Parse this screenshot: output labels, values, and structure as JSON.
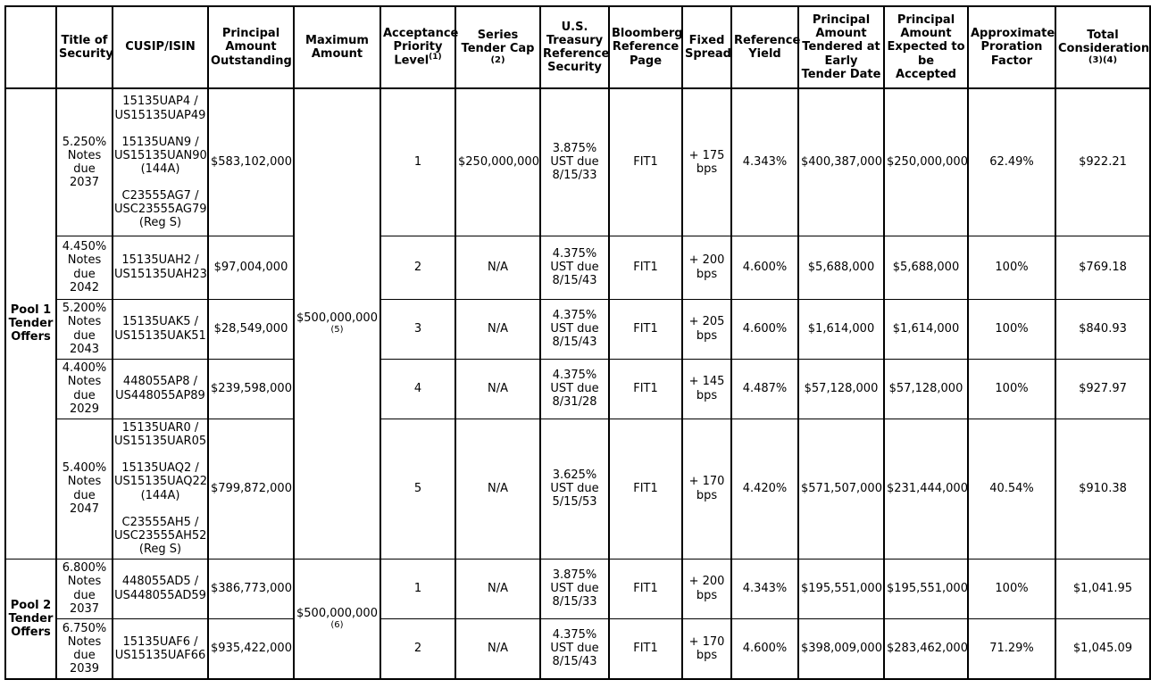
{
  "table": {
    "headers": [
      {
        "text": ""
      },
      {
        "text": "Title of Security"
      },
      {
        "text": "CUSIP/ISIN"
      },
      {
        "text": "Principal Amount Outstanding"
      },
      {
        "text": "Maximum Amount"
      },
      {
        "text": "Acceptance Priority Level",
        "sup": "(1)"
      },
      {
        "text": "Series Tender Cap",
        "note": "(2)"
      },
      {
        "text": "U.S. Treasury Reference Security"
      },
      {
        "text": "Bloomberg Reference Page"
      },
      {
        "text": "Fixed Spread"
      },
      {
        "text": "Reference Yield"
      },
      {
        "text": "Principal Amount Tendered at Early Tender Date"
      },
      {
        "text": "Principal Amount Expected to be Accepted"
      },
      {
        "text": "Approximate Proration Factor"
      },
      {
        "text": "Total Consideration",
        "note": "(3)(4)"
      }
    ],
    "pools": [
      {
        "label": "Pool 1 Tender Offers",
        "maximum_amount": "$500,000,000",
        "maximum_amount_note": "(5)",
        "rows": [
          {
            "title": "5.250% Notes due 2037",
            "cusips": [
              "15135UAP4 / US15135UAP49",
              "15135UAN9 / US15135UAN90 (144A)",
              "C23555AG7 / USC23555AG79 (Reg S)"
            ],
            "principal_outstanding": "$583,102,000",
            "priority": "1",
            "tender_cap": "$250,000,000",
            "ust": "3.875% UST due 8/15/33",
            "bloomberg": "FIT1",
            "spread": "+ 175 bps",
            "ref_yield": "4.343%",
            "tendered": "$400,387,000",
            "accepted": "$250,000,000",
            "proration": "62.49%",
            "consideration": "$922.21"
          },
          {
            "title": "4.450% Notes due 2042",
            "cusips": [
              "15135UAH2 / US15135UAH23"
            ],
            "principal_outstanding": "$97,004,000",
            "priority": "2",
            "tender_cap": "N/A",
            "ust": "4.375% UST due 8/15/43",
            "bloomberg": "FIT1",
            "spread": "+ 200 bps",
            "ref_yield": "4.600%",
            "tendered": "$5,688,000",
            "accepted": "$5,688,000",
            "proration": "100%",
            "consideration": "$769.18"
          },
          {
            "title": "5.200% Notes due 2043",
            "cusips": [
              "15135UAK5 / US15135UAK51"
            ],
            "principal_outstanding": "$28,549,000",
            "priority": "3",
            "tender_cap": "N/A",
            "ust": "4.375% UST due 8/15/43",
            "bloomberg": "FIT1",
            "spread": "+ 205 bps",
            "ref_yield": "4.600%",
            "tendered": "$1,614,000",
            "accepted": "$1,614,000",
            "proration": "100%",
            "consideration": "$840.93"
          },
          {
            "title": "4.400% Notes due 2029",
            "cusips": [
              "448055AP8 / US448055AP89"
            ],
            "principal_outstanding": "$239,598,000",
            "priority": "4",
            "tender_cap": "N/A",
            "ust": "4.375% UST due 8/31/28",
            "bloomberg": "FIT1",
            "spread": "+ 145 bps",
            "ref_yield": "4.487%",
            "tendered": "$57,128,000",
            "accepted": "$57,128,000",
            "proration": "100%",
            "consideration": "$927.97"
          },
          {
            "title": "5.400% Notes due 2047",
            "cusips": [
              "15135UAR0 / US15135UAR05",
              "15135UAQ2 / US15135UAQ22 (144A)",
              "C23555AH5 / USC23555AH52 (Reg S)"
            ],
            "principal_outstanding": "$799,872,000",
            "priority": "5",
            "tender_cap": "N/A",
            "ust": "3.625% UST due 5/15/53",
            "bloomberg": "FIT1",
            "spread": "+ 170 bps",
            "ref_yield": "4.420%",
            "tendered": "$571,507,000",
            "accepted": "$231,444,000",
            "proration": "40.54%",
            "consideration": "$910.38"
          }
        ]
      },
      {
        "label": "Pool 2 Tender Offers",
        "maximum_amount": "$500,000,000",
        "maximum_amount_note": "(6)",
        "rows": [
          {
            "title": "6.800% Notes due 2037",
            "cusips": [
              "448055AD5 / US448055AD59"
            ],
            "principal_outstanding": "$386,773,000",
            "priority": "1",
            "tender_cap": "N/A",
            "ust": "3.875% UST due 8/15/33",
            "bloomberg": "FIT1",
            "spread": "+ 200 bps",
            "ref_yield": "4.343%",
            "tendered": "$195,551,000",
            "accepted": "$195,551,000",
            "proration": "100%",
            "consideration": "$1,041.95"
          },
          {
            "title": "6.750% Notes due 2039",
            "cusips": [
              "15135UAF6 / US15135UAF66"
            ],
            "principal_outstanding": "$935,422,000",
            "priority": "2",
            "tender_cap": "N/A",
            "ust": "4.375% UST due 8/15/43",
            "bloomberg": "FIT1",
            "spread": "+ 170 bps",
            "ref_yield": "4.600%",
            "tendered": "$398,009,000",
            "accepted": "$283,462,000",
            "proration": "71.29%",
            "consideration": "$1,045.09"
          }
        ]
      }
    ],
    "colors": {
      "text": "#000000",
      "border": "#000000",
      "background": "#ffffff"
    }
  }
}
